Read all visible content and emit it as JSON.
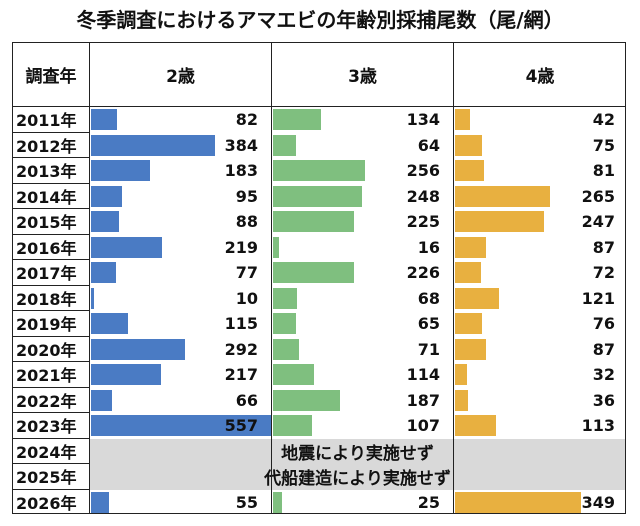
{
  "chart_data": {
    "type": "table",
    "title": "冬季調査におけるアマエビの年齢別採捕尾数（尾/網）",
    "row_header": "調査年",
    "columns": [
      "2歳",
      "3歳",
      "4歳"
    ],
    "colors": [
      "#4a7bc4",
      "#7fbf7f",
      "#e8b040"
    ],
    "rows": [
      {
        "year": "2011年",
        "values": [
          82,
          134,
          42
        ]
      },
      {
        "year": "2012年",
        "values": [
          384,
          64,
          75
        ]
      },
      {
        "year": "2013年",
        "values": [
          183,
          256,
          81
        ]
      },
      {
        "year": "2014年",
        "values": [
          95,
          248,
          265
        ]
      },
      {
        "year": "2015年",
        "values": [
          88,
          225,
          247
        ]
      },
      {
        "year": "2016年",
        "values": [
          219,
          16,
          87
        ]
      },
      {
        "year": "2017年",
        "values": [
          77,
          226,
          72
        ]
      },
      {
        "year": "2018年",
        "values": [
          10,
          68,
          121
        ]
      },
      {
        "year": "2019年",
        "values": [
          115,
          65,
          76
        ]
      },
      {
        "year": "2020年",
        "values": [
          292,
          71,
          87
        ]
      },
      {
        "year": "2021年",
        "values": [
          217,
          114,
          32
        ]
      },
      {
        "year": "2022年",
        "values": [
          66,
          187,
          36
        ]
      },
      {
        "year": "2023年",
        "values": [
          557,
          107,
          113
        ]
      },
      {
        "year": "2024年",
        "values": null
      },
      {
        "year": "2025年",
        "values": null
      },
      {
        "year": "2026年",
        "values": [
          55,
          25,
          349
        ]
      }
    ],
    "notes": [
      "地震により実施せず",
      "代船建造により実施せず"
    ]
  }
}
